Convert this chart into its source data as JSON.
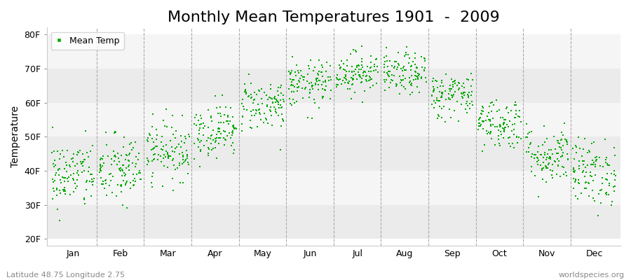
{
  "title": "Monthly Mean Temperatures 1901  -  2009",
  "ylabel": "Temperature",
  "footer_left": "Latitude 48.75 Longitude 2.75",
  "footer_right": "worldspecies.org",
  "legend_label": "Mean Temp",
  "dot_color": "#00aa00",
  "dot_size": 3,
  "yticks": [
    20,
    30,
    40,
    50,
    60,
    70,
    80
  ],
  "ytick_labels": [
    "20F",
    "30F",
    "40F",
    "50F",
    "60F",
    "70F",
    "80F"
  ],
  "ylim": [
    18,
    82
  ],
  "month_names": [
    "Jan",
    "Feb",
    "Mar",
    "Apr",
    "May",
    "Jun",
    "Jul",
    "Aug",
    "Sep",
    "Oct",
    "Nov",
    "Dec"
  ],
  "month_means_C": [
    3.8,
    4.5,
    7.8,
    11.0,
    15.2,
    18.5,
    20.5,
    20.2,
    16.8,
    12.2,
    7.0,
    4.2
  ],
  "month_stds_C": [
    2.8,
    2.9,
    2.4,
    2.2,
    2.1,
    1.9,
    1.7,
    1.7,
    1.9,
    2.1,
    2.4,
    2.7
  ],
  "n_years": 109,
  "background_color": "#ffffff",
  "band_color_dark": "#ebebeb",
  "band_color_light": "#f5f5f5",
  "title_fontsize": 16,
  "axis_label_fontsize": 10,
  "tick_fontsize": 9,
  "footer_fontsize": 8,
  "legend_fontsize": 9
}
